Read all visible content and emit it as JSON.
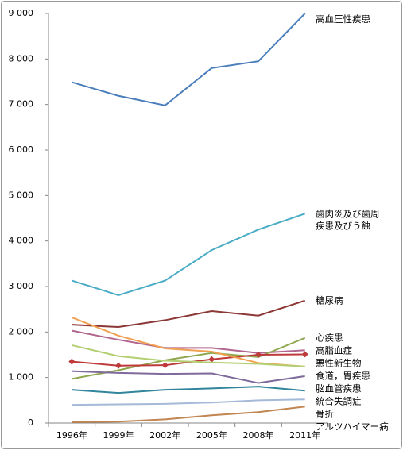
{
  "chart_data": {
    "type": "line",
    "categories": [
      "1996年",
      "1999年",
      "2002年",
      "2005年",
      "2008年",
      "2011年"
    ],
    "ylim": [
      0,
      9000
    ],
    "yticks": [
      0,
      {
        "value": 1000,
        "label": "1 000"
      },
      {
        "value": 2000,
        "label": "2 000"
      },
      {
        "value": 3000,
        "label": "3 000"
      },
      {
        "value": 4000,
        "label": "4 000"
      },
      {
        "value": 5000,
        "label": "5 000"
      },
      {
        "value": 6000,
        "label": "6 000"
      },
      {
        "value": 7000,
        "label": "7 000"
      },
      {
        "value": 8000,
        "label": "8 000"
      },
      {
        "value": 9000,
        "label": "9 000"
      }
    ],
    "series": [
      {
        "name": "高血圧性疾患",
        "color": "#4a7ebb",
        "values": [
          7490,
          7190,
          6980,
          7800,
          7950,
          9000
        ]
      },
      {
        "name": "歯肉炎及び歯周\n疾患及びう蝕",
        "color": "#4bacc6",
        "values": [
          3130,
          2810,
          3130,
          3800,
          4250,
          4600
        ]
      },
      {
        "name": "糖尿病",
        "color": "#8c3836",
        "values": [
          2160,
          2110,
          2260,
          2460,
          2360,
          2690
        ]
      },
      {
        "name": "高脂血症",
        "color": "#b0668e",
        "values": [
          2030,
          1830,
          1650,
          1650,
          1540,
          1600
        ]
      },
      {
        "name": "心疾患",
        "color": "#8fa84f",
        "values": [
          970,
          1160,
          1380,
          1540,
          1450,
          1870
        ]
      },
      {
        "name": "悪性新生物",
        "color": "#be3a3a",
        "marker": "diamond",
        "values": [
          1350,
          1260,
          1270,
          1400,
          1500,
          1510
        ]
      },
      {
        "name": "食道，胃疾患",
        "color": "#f0a050",
        "values": [
          2320,
          1920,
          1640,
          1570,
          1320,
          1240
        ]
      },
      {
        "color": "#b3cf72",
        "values": [
          1710,
          1470,
          1370,
          1330,
          1300,
          1240
        ]
      },
      {
        "name": "脳血管疾患",
        "color": "#7f6a9c",
        "values": [
          1140,
          1100,
          1080,
          1090,
          880,
          1030
        ]
      },
      {
        "name": "統合失調症",
        "color": "#31859c",
        "values": [
          730,
          660,
          730,
          760,
          800,
          710
        ]
      },
      {
        "name": "骨折",
        "color": "#a5b9d8",
        "values": [
          400,
          410,
          420,
          450,
          500,
          520
        ]
      },
      {
        "name": "アルツハイマー病",
        "color": "#c08550",
        "values": [
          20,
          30,
          80,
          170,
          240,
          360
        ]
      }
    ]
  }
}
